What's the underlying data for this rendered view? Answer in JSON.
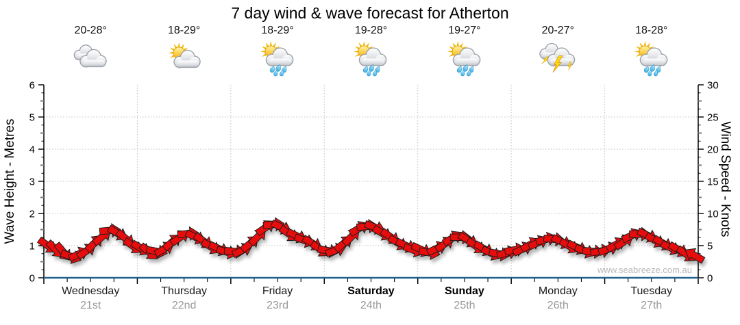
{
  "title": "7 day wind & wave forecast for Atherton",
  "watermark": "www.seabreeze.com.au",
  "header_days": [
    {
      "name": "Wednesday",
      "date": "21st",
      "temp": "20-28°",
      "icon": "cloudy",
      "weekend": false
    },
    {
      "name": "Thursday",
      "date": "22nd",
      "temp": "18-29°",
      "icon": "partly-cloudy",
      "weekend": false
    },
    {
      "name": "Friday",
      "date": "23rd",
      "temp": "18-29°",
      "icon": "sun-cloud-rain",
      "weekend": false
    },
    {
      "name": "Saturday",
      "date": "24th",
      "temp": "19-28°",
      "icon": "sun-cloud-rain",
      "weekend": true
    },
    {
      "name": "Sunday",
      "date": "25th",
      "temp": "19-27°",
      "icon": "sun-cloud-rain",
      "weekend": true
    },
    {
      "name": "Monday",
      "date": "26th",
      "temp": "20-27°",
      "icon": "thunderstorm",
      "weekend": false
    },
    {
      "name": "Tuesday",
      "date": "27th",
      "temp": "18-28°",
      "icon": "sun-cloud-rain",
      "weekend": false
    }
  ],
  "chart": {
    "left_axis": {
      "label": "Wave Height - Metres",
      "ticks": [
        0,
        1,
        2,
        3,
        4,
        5,
        6
      ],
      "range": [
        0,
        6
      ]
    },
    "right_axis": {
      "label": "Wind Speed - Knots",
      "ticks": [
        0,
        5,
        10,
        15,
        20,
        25,
        30
      ],
      "range": [
        0,
        30
      ]
    }
  },
  "chart_data": {
    "type": "scatter",
    "marker": "wind-direction-arrow",
    "marker_color": "#e81010",
    "title": "7 day wind & wave forecast for Atherton",
    "x_categories": [
      "Wednesday",
      "Thursday",
      "Friday",
      "Saturday",
      "Sunday",
      "Monday",
      "Tuesday"
    ],
    "x_dates": [
      "21st",
      "22nd",
      "23rd",
      "24th",
      "25th",
      "26th",
      "27th"
    ],
    "points_per_day": 12,
    "x_step_hours": 2,
    "ylabel_left": "Wave Height - Metres",
    "ylabel_right": "Wind Speed - Knots",
    "ylim_left": [
      0,
      6
    ],
    "ylim_right": [
      0,
      30
    ],
    "grid": true,
    "wave_height_m": [
      1.0,
      0.88,
      0.8,
      0.66,
      0.74,
      0.84,
      1.08,
      1.28,
      1.47,
      1.38,
      1.22,
      0.98,
      0.92,
      0.8,
      0.82,
      0.9,
      1.12,
      1.26,
      1.37,
      1.26,
      1.14,
      0.96,
      0.9,
      0.8,
      0.82,
      0.86,
      1.07,
      1.28,
      1.57,
      1.66,
      1.57,
      1.36,
      1.3,
      1.16,
      1.07,
      0.88,
      0.84,
      0.86,
      1.07,
      1.28,
      1.54,
      1.6,
      1.57,
      1.38,
      1.27,
      1.08,
      1.0,
      0.86,
      0.87,
      0.78,
      0.92,
      1.06,
      1.24,
      1.26,
      1.17,
      0.98,
      0.9,
      0.76,
      0.74,
      0.78,
      0.87,
      0.9,
      1.04,
      1.1,
      1.2,
      1.2,
      1.12,
      0.98,
      0.94,
      0.83,
      0.82,
      0.83,
      0.9,
      1.04,
      1.13,
      1.32,
      1.36,
      1.32,
      1.16,
      1.07,
      0.93,
      0.87,
      0.73,
      0.7
    ],
    "wind_speed_knots": [
      5.0,
      4.4,
      4.0,
      3.3,
      3.7,
      4.2,
      5.4,
      6.4,
      7.4,
      6.9,
      6.1,
      4.9,
      4.6,
      4.0,
      4.1,
      4.5,
      5.6,
      6.3,
      6.9,
      6.3,
      5.7,
      4.8,
      4.5,
      4.0,
      4.1,
      4.3,
      5.4,
      6.4,
      7.9,
      8.3,
      7.9,
      6.8,
      6.5,
      5.8,
      5.4,
      4.4,
      4.2,
      4.3,
      5.4,
      6.4,
      7.7,
      8.0,
      7.9,
      6.9,
      6.4,
      5.4,
      5.0,
      4.3,
      4.4,
      3.9,
      4.6,
      5.3,
      6.2,
      6.3,
      5.9,
      4.9,
      4.5,
      3.8,
      3.7,
      3.9,
      4.4,
      4.5,
      5.2,
      5.5,
      6.0,
      6.0,
      5.6,
      4.9,
      4.7,
      4.2,
      4.1,
      4.2,
      4.5,
      5.2,
      5.7,
      6.6,
      6.8,
      6.6,
      5.8,
      5.4,
      4.7,
      4.4,
      3.7,
      3.5
    ],
    "wind_dir_deg_screen": [
      35,
      45,
      50,
      20,
      -25,
      -35,
      -45,
      -40,
      -5,
      30,
      40,
      35,
      30,
      40,
      10,
      -30,
      -40,
      -35,
      -5,
      25,
      35,
      30,
      25,
      15,
      5,
      -25,
      -40,
      -45,
      -35,
      -5,
      25,
      35,
      25,
      20,
      30,
      35,
      10,
      -20,
      -40,
      -45,
      -30,
      -5,
      20,
      30,
      35,
      30,
      25,
      20,
      25,
      10,
      -25,
      -35,
      -30,
      0,
      30,
      35,
      30,
      25,
      10,
      -15,
      -10,
      -25,
      -30,
      -25,
      -15,
      5,
      25,
      30,
      25,
      20,
      5,
      -10,
      -20,
      -30,
      -35,
      -25,
      0,
      25,
      30,
      30,
      25,
      30,
      35,
      -150
    ]
  },
  "colors": {
    "arrow": "#e81010",
    "arrow_outline": "#1c1c1c",
    "axis_bottom": "#24618e",
    "axis_black": "#000000",
    "grid": "#c0c0c0",
    "day_text": "#1a1a1a",
    "date_text": "#999999",
    "watermark_text": "#b8b8b8"
  }
}
